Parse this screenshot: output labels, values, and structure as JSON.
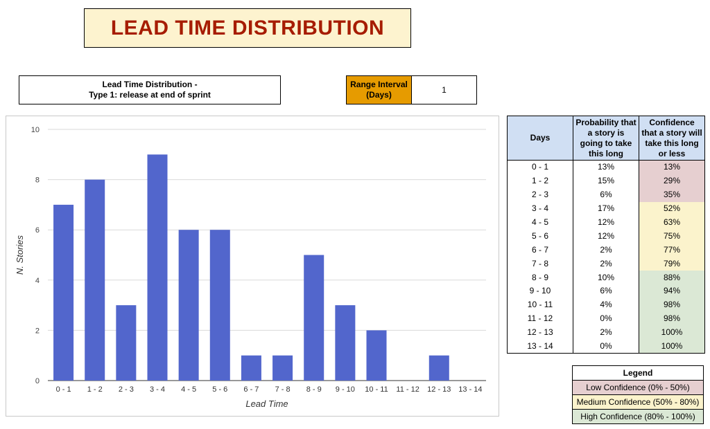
{
  "page_title": "LEAD TIME DISTRIBUTION",
  "subtitle": {
    "line1": "Lead Time Distribution -",
    "line2": "Type 1: release at end of sprint"
  },
  "range_interval": {
    "label_line1": "Range Interval",
    "label_line2": "(Days)",
    "value": "1"
  },
  "colors": {
    "title": "#a61c00",
    "bar": "#5266cc",
    "header": "#d0dff3",
    "range": "#e69b00",
    "low": "#e6cfd0",
    "medium": "#fbf3cc",
    "high": "#dbe8d5"
  },
  "chart_data": {
    "type": "bar",
    "categories": [
      "0 - 1",
      "1 - 2",
      "2 - 3",
      "3 - 4",
      "4 - 5",
      "5 - 6",
      "6 - 7",
      "7 - 8",
      "8 - 9",
      "9 - 10",
      "10 - 11",
      "11 - 12",
      "12 - 13",
      "13 - 14"
    ],
    "values": [
      7,
      8,
      3,
      9,
      6,
      6,
      1,
      1,
      5,
      3,
      2,
      0,
      1,
      0
    ],
    "xlabel": "Lead Time",
    "ylabel": "N. Stories",
    "ylim": [
      0,
      10
    ],
    "yticks": [
      0,
      2,
      4,
      6,
      8,
      10
    ],
    "grid": true
  },
  "table": {
    "headers": {
      "days": "Days",
      "prob": [
        "Probability that",
        "a story is",
        "going to take",
        "this long"
      ],
      "conf": [
        "Confidence",
        "that a story will",
        "take this long",
        "or less"
      ]
    },
    "rows": [
      {
        "days": "0 - 1",
        "prob": "13%",
        "conf": "13%",
        "level": "low"
      },
      {
        "days": "1 - 2",
        "prob": "15%",
        "conf": "29%",
        "level": "low"
      },
      {
        "days": "2 - 3",
        "prob": "6%",
        "conf": "35%",
        "level": "low"
      },
      {
        "days": "3 - 4",
        "prob": "17%",
        "conf": "52%",
        "level": "med"
      },
      {
        "days": "4 - 5",
        "prob": "12%",
        "conf": "63%",
        "level": "med"
      },
      {
        "days": "5 - 6",
        "prob": "12%",
        "conf": "75%",
        "level": "med"
      },
      {
        "days": "6 - 7",
        "prob": "2%",
        "conf": "77%",
        "level": "med"
      },
      {
        "days": "7 - 8",
        "prob": "2%",
        "conf": "79%",
        "level": "med"
      },
      {
        "days": "8 - 9",
        "prob": "10%",
        "conf": "88%",
        "level": "high"
      },
      {
        "days": "9 - 10",
        "prob": "6%",
        "conf": "94%",
        "level": "high"
      },
      {
        "days": "10 - 11",
        "prob": "4%",
        "conf": "98%",
        "level": "high"
      },
      {
        "days": "11 - 12",
        "prob": "0%",
        "conf": "98%",
        "level": "high"
      },
      {
        "days": "12 - 13",
        "prob": "2%",
        "conf": "100%",
        "level": "high"
      },
      {
        "days": "13 - 14",
        "prob": "0%",
        "conf": "100%",
        "level": "high"
      }
    ]
  },
  "legend": {
    "title": "Legend",
    "low": "Low Confidence (0% - 50%)",
    "medium": "Medium Confidence (50% - 80%)",
    "high": "High Confidence (80% - 100%)"
  }
}
